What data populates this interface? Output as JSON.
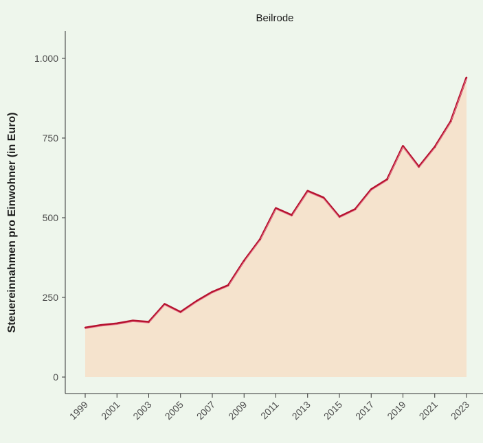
{
  "chart_data": {
    "type": "area",
    "title": "Beilrode",
    "xlabel": "",
    "ylabel": "Steuereinnahmen pro Einwohner (in Euro)",
    "x": [
      1999,
      2000,
      2001,
      2002,
      2003,
      2004,
      2005,
      2006,
      2007,
      2008,
      2009,
      2010,
      2011,
      2012,
      2013,
      2014,
      2015,
      2016,
      2017,
      2018,
      2019,
      2020,
      2021,
      2022,
      2023
    ],
    "series": [
      {
        "values": [
          155,
          163,
          168,
          177,
          173,
          229,
          204,
          238,
          267,
          288,
          365,
          432,
          530,
          508,
          584,
          563,
          503,
          527,
          589,
          620,
          725,
          660,
          722,
          802,
          940
        ]
      }
    ],
    "xticks": [
      "1999",
      "2001",
      "2003",
      "2005",
      "2007",
      "2009",
      "2011",
      "2013",
      "2015",
      "2017",
      "2019",
      "2021",
      "2023"
    ],
    "yticks": [
      0,
      250,
      500,
      750,
      1000
    ],
    "ytick_labels": [
      "0",
      "250",
      "500",
      "750",
      "1.000"
    ],
    "ylim": [
      0,
      1000
    ],
    "grid": false,
    "colors": {
      "background": "#eef6ec",
      "fill": "#f5e3cd",
      "line": "#b5122e",
      "line_highlight": "#e87b90",
      "axis": "#333333"
    }
  }
}
